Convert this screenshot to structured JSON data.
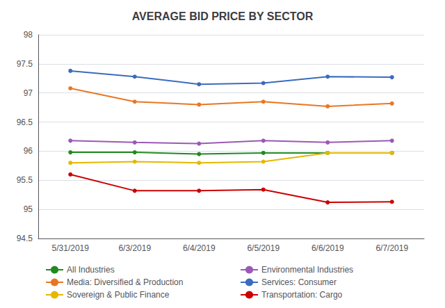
{
  "chart_data": {
    "type": "line",
    "title": "AVERAGE BID PRICE BY SECTOR",
    "categories": [
      "5/31/2019",
      "6/3/2019",
      "6/4/2019",
      "6/5/2019",
      "6/6/2019",
      "6/7/2019"
    ],
    "ylim": [
      94.5,
      98.0
    ],
    "yticks": [
      94.5,
      95.0,
      95.5,
      96.0,
      96.5,
      97.0,
      97.5,
      98.0
    ],
    "grid": true,
    "legend": "bottom",
    "marker": "circle",
    "series": [
      {
        "name": "All Industries",
        "color": "#218a21",
        "values": [
          95.98,
          95.98,
          95.95,
          95.97,
          95.97,
          95.97
        ]
      },
      {
        "name": "Environmental Industries",
        "color": "#9b59b6",
        "values": [
          96.18,
          96.15,
          96.13,
          96.18,
          96.15,
          96.18
        ]
      },
      {
        "name": "Media: Diversified & Production",
        "color": "#e87722",
        "values": [
          97.08,
          96.85,
          96.8,
          96.85,
          96.77,
          96.82
        ]
      },
      {
        "name": "Services: Consumer",
        "color": "#3a6bbf",
        "values": [
          97.38,
          97.28,
          97.15,
          97.17,
          97.28,
          97.27
        ]
      },
      {
        "name": "Sovereign & Public Finance",
        "color": "#e5b800",
        "values": [
          95.8,
          95.82,
          95.8,
          95.82,
          95.97,
          95.97
        ]
      },
      {
        "name": "Transportation: Cargo",
        "color": "#cc0000",
        "values": [
          95.6,
          95.32,
          95.32,
          95.34,
          95.12,
          95.13
        ]
      }
    ]
  }
}
